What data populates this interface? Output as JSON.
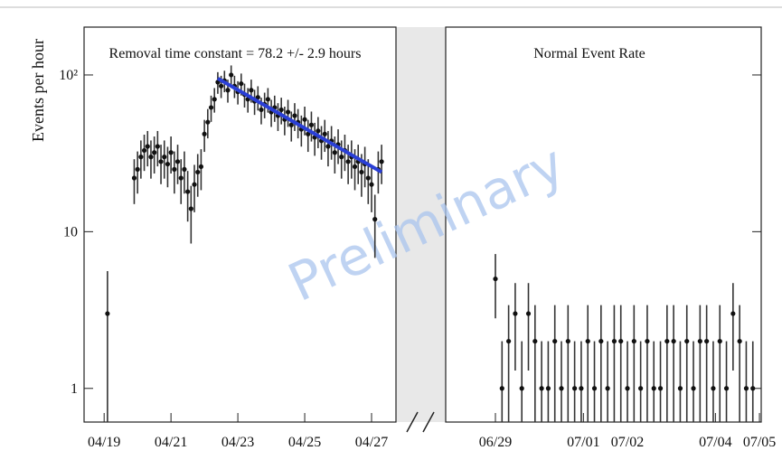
{
  "chart_data": [
    {
      "type": "scatter",
      "y_label": "Events per hour",
      "annotation": "Removal time constant = 78.2 +/- 2.9 hours",
      "log_y": true,
      "ylim": [
        0.61,
        202
      ],
      "yticks": [
        1,
        10,
        {
          "value": 100,
          "label": "10²"
        }
      ],
      "xlim": [
        18.4,
        27.73
      ],
      "xticks": [
        {
          "value": 19,
          "label": "04/19"
        },
        {
          "value": 21,
          "label": "04/21"
        },
        {
          "value": 23,
          "label": "04/23"
        },
        {
          "value": 25,
          "label": "04/25"
        },
        {
          "value": 27,
          "label": "04/27"
        }
      ],
      "points": {
        "color": "#111111",
        "x": [
          19.1,
          19.9,
          20.0,
          20.1,
          20.2,
          20.3,
          20.4,
          20.5,
          20.6,
          20.7,
          20.8,
          20.9,
          21.0,
          21.1,
          21.2,
          21.3,
          21.4,
          21.5,
          21.6,
          21.7,
          21.8,
          21.9,
          22.0,
          22.1,
          22.2,
          22.3,
          22.4,
          22.5,
          22.6,
          22.7,
          22.8,
          22.9,
          23.0,
          23.1,
          23.2,
          23.3,
          23.4,
          23.5,
          23.6,
          23.7,
          23.8,
          23.9,
          24.0,
          24.1,
          24.2,
          24.3,
          24.4,
          24.5,
          24.6,
          24.7,
          24.8,
          24.9,
          25.0,
          25.1,
          25.2,
          25.3,
          25.4,
          25.5,
          25.6,
          25.7,
          25.8,
          25.9,
          26.0,
          26.1,
          26.2,
          26.3,
          26.4,
          26.5,
          26.6,
          26.7,
          26.8,
          26.9,
          27.0,
          27.1,
          27.2,
          27.3
        ],
        "values": [
          3,
          22,
          25,
          30,
          33,
          35,
          30,
          32,
          35,
          28,
          30,
          27,
          32,
          25,
          28,
          22,
          25,
          18,
          14,
          20,
          24,
          26,
          42,
          50,
          62,
          70,
          90,
          85,
          92,
          80,
          100,
          85,
          78,
          88,
          75,
          70,
          80,
          68,
          72,
          60,
          65,
          70,
          58,
          62,
          55,
          60,
          52,
          58,
          48,
          55,
          50,
          45,
          52,
          42,
          48,
          40,
          44,
          38,
          42,
          35,
          38,
          32,
          36,
          30,
          33,
          28,
          30,
          26,
          28,
          24,
          27,
          22,
          20,
          12,
          25,
          28
        ],
        "errors": [
          2.6,
          7,
          7.5,
          8.2,
          8.6,
          8.9,
          8.2,
          8.5,
          8.9,
          7.9,
          8.2,
          7.8,
          8.5,
          7.5,
          7.9,
          7,
          7.5,
          6.4,
          5.6,
          6.7,
          7.3,
          7.6,
          9.7,
          10.6,
          11.8,
          12.5,
          14.2,
          13.8,
          14.4,
          13.4,
          15,
          13.8,
          13.2,
          14.1,
          13,
          12.5,
          13.4,
          12.4,
          12.7,
          11.6,
          12.1,
          12.5,
          11.4,
          11.8,
          11.1,
          11.6,
          10.8,
          11.4,
          10.4,
          11.1,
          10.6,
          10.1,
          10.8,
          9.7,
          10.4,
          9.5,
          9.9,
          9.2,
          9.7,
          8.9,
          9.2,
          8.5,
          9,
          8.2,
          8.6,
          7.9,
          8.2,
          7.6,
          7.9,
          7.3,
          7.8,
          7,
          6.7,
          5.2,
          7.5,
          7.9
        ]
      },
      "fit": {
        "color": "#2a3fd6",
        "x": [
          22.4,
          27.3
        ],
        "values": [
          95,
          24
        ]
      }
    },
    {
      "type": "scatter",
      "title": "Normal Event Rate",
      "xlim": [
        27.87,
        35.04
      ],
      "xticks": [
        {
          "value": 29,
          "label": "06/29"
        },
        {
          "value": 31,
          "label": "07/01"
        },
        {
          "value": 32,
          "label": "07/02"
        },
        {
          "value": 34,
          "label": "07/04"
        },
        {
          "value": 35,
          "label": "07/05"
        }
      ],
      "points": {
        "color": "#111111",
        "x": [
          29,
          29.15,
          29.3,
          29.45,
          29.6,
          29.75,
          29.9,
          30.05,
          30.2,
          30.35,
          30.5,
          30.65,
          30.8,
          30.95,
          31.1,
          31.25,
          31.4,
          31.55,
          31.7,
          31.85,
          32,
          32.15,
          32.3,
          32.45,
          32.6,
          32.75,
          32.9,
          33.05,
          33.2,
          33.35,
          33.5,
          33.65,
          33.8,
          33.95,
          34.1,
          34.25,
          34.4,
          34.55,
          34.7,
          34.85
        ],
        "values": [
          5,
          1,
          2,
          3,
          1,
          3,
          2,
          1,
          1,
          2,
          1,
          2,
          1,
          1,
          2,
          1,
          2,
          1,
          2,
          2,
          1,
          2,
          1,
          2,
          1,
          1,
          2,
          2,
          1,
          2,
          1,
          2,
          2,
          1,
          2,
          1,
          3,
          2,
          1,
          1
        ],
        "errors": [
          2.2,
          1,
          1.4,
          1.7,
          1,
          1.7,
          1.4,
          1,
          1,
          1.4,
          1,
          1.4,
          1,
          1,
          1.4,
          1,
          1.4,
          1,
          1.4,
          1.4,
          1,
          1.4,
          1,
          1.4,
          1,
          1,
          1.4,
          1.4,
          1,
          1.4,
          1,
          1.4,
          1.4,
          1,
          1.4,
          1,
          1.7,
          1.4,
          1,
          1
        ]
      }
    }
  ],
  "watermark": "Preliminary"
}
